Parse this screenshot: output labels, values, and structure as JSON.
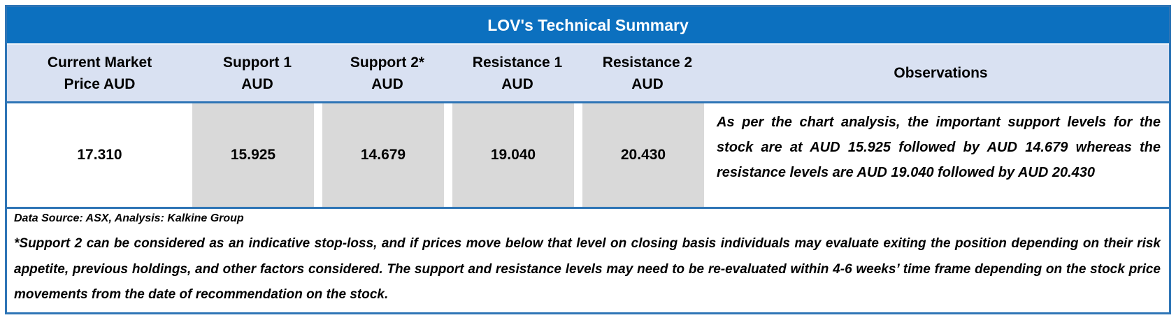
{
  "table": {
    "title": "LOV's Technical Summary",
    "headers": [
      {
        "line1": "Current Market",
        "line2": "Price AUD"
      },
      {
        "line1": "Support 1",
        "line2": "AUD"
      },
      {
        "line1": "Support 2*",
        "line2": "AUD"
      },
      {
        "line1": "Resistance 1",
        "line2": "AUD"
      },
      {
        "line1": "Resistance 2",
        "line2": "AUD"
      }
    ],
    "observations_header": "Observations",
    "values": [
      "17.310",
      "15.925",
      "14.679",
      "19.040",
      "20.430"
    ],
    "observations_text": "As per the chart analysis, the important support levels for the stock are at AUD 15.925 followed by AUD 14.679 whereas the resistance levels are AUD 19.040 followed by AUD 20.430",
    "footnote_source": "Data Source: ASX, Analysis: Kalkine Group",
    "footnote_disclaimer": "*Support 2 can be considered as an indicative stop-loss, and if prices move below that level on closing basis individuals may evaluate exiting the position depending on their risk appetite, previous holdings, and other factors considered. The support and resistance levels may need to be re-evaluated within 4-6 weeks’ time frame depending on the stock price movements from the date of recommendation on the stock."
  },
  "chart_data": {
    "type": "table",
    "title": "LOV's Technical Summary",
    "columns": [
      "Current Market Price AUD",
      "Support 1 AUD",
      "Support 2* AUD",
      "Resistance 1 AUD",
      "Resistance 2 AUD",
      "Observations"
    ],
    "rows": [
      [
        "17.310",
        "15.925",
        "14.679",
        "19.040",
        "20.430",
        "As per the chart analysis, the important support levels for the stock are at AUD 15.925 followed by AUD 14.679 whereas the resistance levels are AUD 19.040 followed by AUD 20.430"
      ]
    ],
    "notes": [
      "Data Source: ASX, Analysis: Kalkine Group",
      "*Support 2 can be considered as an indicative stop-loss, and if prices move below that level on closing basis individuals may evaluate exiting the position depending on their risk appetite, previous holdings, and other factors considered. The support and resistance levels may need to be re-evaluated within 4-6 weeks’ time frame depending on the stock price movements from the date of recommendation on the stock."
    ],
    "layout": {
      "highlighted_value_cells": [
        "Support 1",
        "Support 2*",
        "Resistance 1",
        "Resistance 2"
      ],
      "highlight_color": "#D9D9D9"
    }
  },
  "colors": {
    "title_bar": "#0C70BF",
    "header_bg": "#D9E1F2",
    "cell_gray": "#D9D9D9",
    "border_blue": "#2E75B6",
    "title_text": "#FFFFFF",
    "text": "#000000",
    "page_bg": "#FFFFFF"
  }
}
